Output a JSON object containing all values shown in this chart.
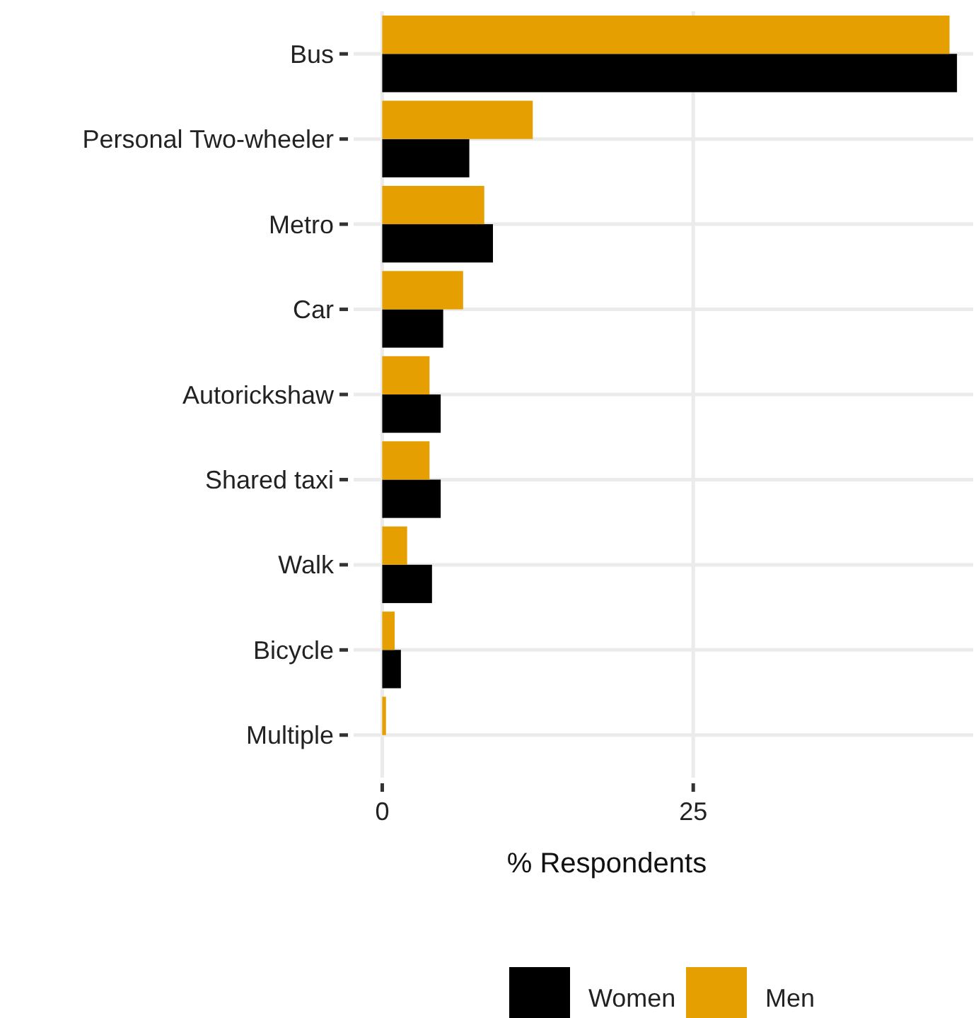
{
  "chart_data": {
    "type": "bar",
    "orientation": "horizontal",
    "xlabel": "% Respondents",
    "categories": [
      "Bus",
      "Personal Two-wheeler",
      "Metro",
      "Car",
      "Autorickshaw",
      "Shared taxi",
      "Walk",
      "Bicycle",
      "Multiple"
    ],
    "series": [
      {
        "name": "Women",
        "color": "#000000",
        "values": [
          46.2,
          7.0,
          8.9,
          4.9,
          4.7,
          4.7,
          4.0,
          1.5,
          0
        ]
      },
      {
        "name": "Men",
        "color": "#e69f00",
        "values": [
          45.6,
          12.1,
          8.2,
          6.5,
          3.8,
          3.8,
          2.0,
          1.0,
          0.3
        ]
      }
    ],
    "xlim": [
      -2.3,
      47.5
    ],
    "xticks": [
      0,
      25
    ],
    "grid": true,
    "legend": "bottom"
  }
}
